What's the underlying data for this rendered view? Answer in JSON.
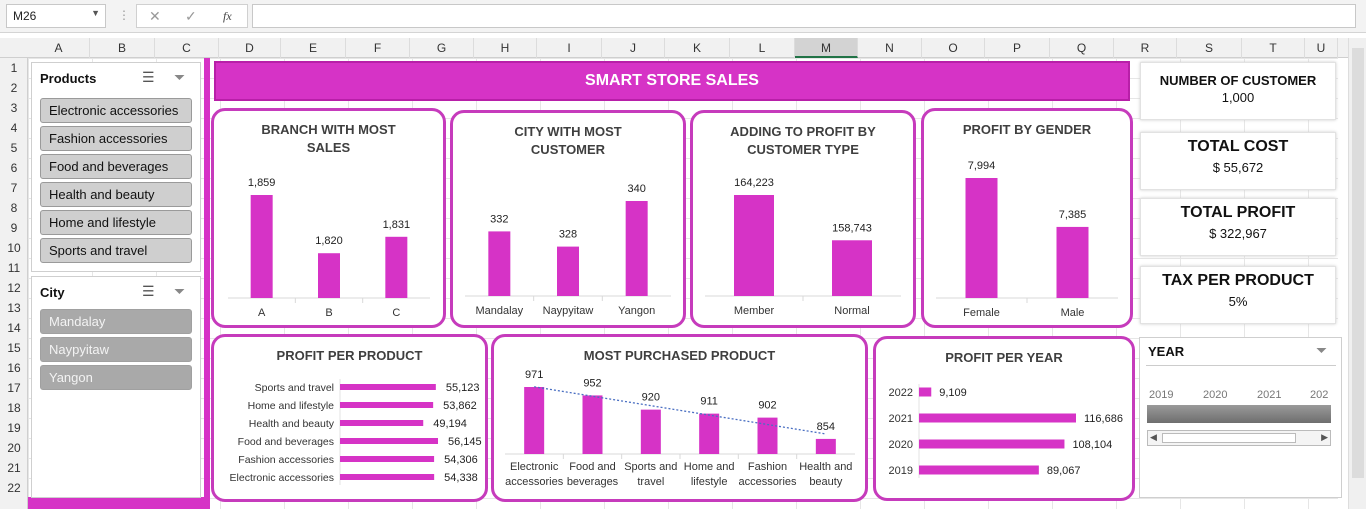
{
  "formula_bar": {
    "cell_ref": "M26",
    "fx": "fx"
  },
  "columns": [
    "A",
    "B",
    "C",
    "D",
    "E",
    "F",
    "G",
    "H",
    "I",
    "J",
    "K",
    "L",
    "M",
    "N",
    "O",
    "P",
    "Q",
    "R",
    "S",
    "T",
    "U"
  ],
  "rows": [
    "1",
    "2",
    "3",
    "4",
    "5",
    "6",
    "7",
    "8",
    "9",
    "10",
    "11",
    "12",
    "13",
    "14",
    "15",
    "16",
    "17",
    "18",
    "19",
    "20",
    "21",
    "22"
  ],
  "slicers": {
    "products": {
      "title": "Products",
      "items": [
        "Electronic accessories",
        "Fashion accessories",
        "Food and beverages",
        "Health and beauty",
        "Home and lifestyle",
        "Sports and travel"
      ]
    },
    "city": {
      "title": "City",
      "items": [
        "Mandalay",
        "Naypyitaw",
        "Yangon"
      ]
    },
    "year": {
      "title": "YEAR",
      "years": [
        "2019",
        "2020",
        "2021",
        "202"
      ]
    }
  },
  "banner": {
    "title": "SMART STORE SALES"
  },
  "kpis": [
    {
      "label": "NUMBER OF CUSTOMER",
      "value": "1,000"
    },
    {
      "label": "TOTAL COST",
      "value": "$ 55,672"
    },
    {
      "label": "TOTAL PROFIT",
      "value": "$ 322,967"
    },
    {
      "label": "TAX PER PRODUCT",
      "value": "5%"
    }
  ],
  "colors": {
    "accent": "#d633c6",
    "panel_border": "#c63bbc",
    "trend": "#4a6fc2"
  },
  "chart_data": [
    {
      "id": "branch",
      "type": "bar",
      "title": "BRANCH WITH MOST\nSALES",
      "categories": [
        "A",
        "B",
        "C"
      ],
      "values": [
        1859,
        1820,
        1831
      ],
      "labels": [
        "1,859",
        "1,820",
        "1,831"
      ]
    },
    {
      "id": "city",
      "type": "bar",
      "title": "CITY WITH MOST\nCUSTOMER",
      "categories": [
        "Mandalay",
        "Naypyitaw",
        "Yangon"
      ],
      "values": [
        332,
        328,
        340
      ],
      "labels": [
        "332",
        "328",
        "340"
      ]
    },
    {
      "id": "custtype",
      "type": "bar",
      "title": "ADDING TO PROFIT BY\nCUSTOMER TYPE",
      "categories": [
        "Member",
        "Normal"
      ],
      "values": [
        164223,
        158743
      ],
      "labels": [
        "164,223",
        "158,743"
      ]
    },
    {
      "id": "gender",
      "type": "bar",
      "title": "PROFIT BY GENDER",
      "categories": [
        "Female",
        "Male"
      ],
      "values": [
        7994,
        7385
      ],
      "labels": [
        "7,994",
        "7,385"
      ]
    },
    {
      "id": "product",
      "type": "bar",
      "orientation": "horizontal",
      "title": "PROFIT PER PRODUCT",
      "categories": [
        "Sports and travel",
        "Home and lifestyle",
        "Health and beauty",
        "Food and beverages",
        "Fashion accessories",
        "Electronic accessories"
      ],
      "values": [
        55123,
        53862,
        49194,
        56145,
        54306,
        54338
      ],
      "labels": [
        "55,123",
        "53,862",
        "49,194",
        "56,145",
        "54,306",
        "54,338"
      ]
    },
    {
      "id": "purchased",
      "type": "bar",
      "title": "MOST PURCHASED PRODUCT",
      "categories": [
        [
          "Electronic",
          "accessories"
        ],
        [
          "Food and",
          "beverages"
        ],
        [
          "Sports and",
          "travel"
        ],
        [
          "Home and",
          "lifestyle"
        ],
        [
          "Fashion",
          "accessories"
        ],
        [
          "Health and",
          "beauty"
        ]
      ],
      "values": [
        971,
        952,
        920,
        911,
        902,
        854
      ],
      "labels": [
        "971",
        "952",
        "920",
        "911",
        "902",
        "854"
      ],
      "trendline": "linear"
    },
    {
      "id": "year",
      "type": "bar",
      "orientation": "horizontal",
      "title": "PROFIT PER YEAR",
      "categories": [
        "2022",
        "2021",
        "2020",
        "2019"
      ],
      "values": [
        9109,
        116686,
        108104,
        89067
      ],
      "labels": [
        "9,109",
        "116,686",
        "108,104",
        "89,067"
      ]
    }
  ]
}
